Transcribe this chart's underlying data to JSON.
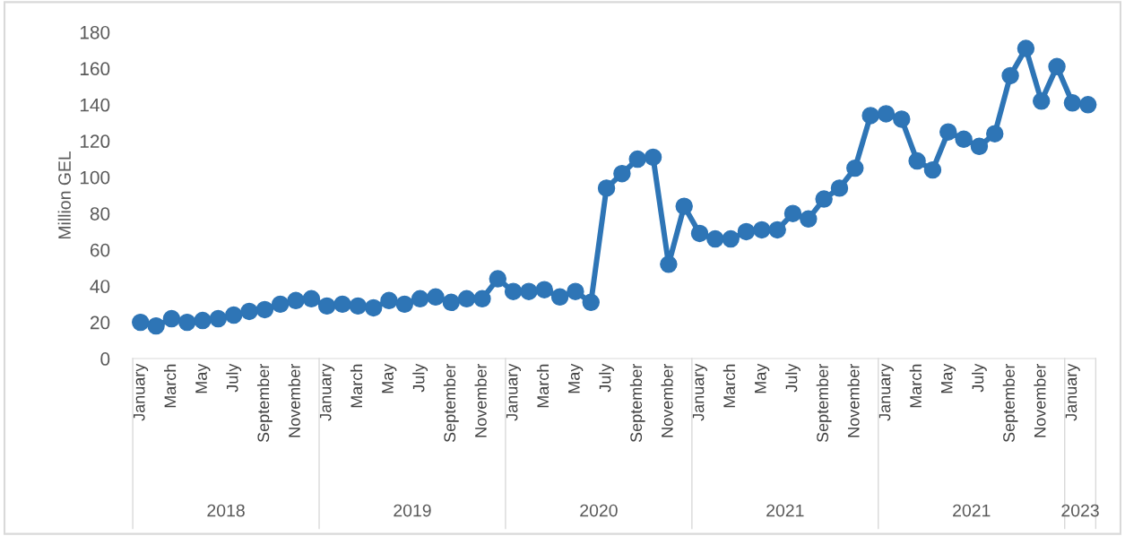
{
  "chart_data": {
    "type": "line",
    "ylabel": "Million GEL",
    "categories": [
      "January",
      null,
      "March",
      null,
      "May",
      null,
      "July",
      null,
      "September",
      null,
      "November",
      null,
      "January",
      null,
      "March",
      null,
      "May",
      null,
      "July",
      null,
      "September",
      null,
      "November",
      null,
      "January",
      null,
      "March",
      null,
      "May",
      null,
      "July",
      null,
      "September",
      null,
      "November",
      null,
      "January",
      null,
      "March",
      null,
      "May",
      null,
      "July",
      null,
      "September",
      null,
      "November",
      null,
      "January",
      null,
      "March",
      null,
      "May",
      null,
      "July",
      null,
      "September",
      null,
      "November",
      null,
      "January",
      null
    ],
    "series": [
      {
        "color": "#2e75b6",
        "values": [
          20,
          18,
          22,
          20,
          21,
          22,
          24,
          26,
          27,
          30,
          32,
          33,
          29,
          30,
          29,
          28,
          32,
          30,
          33,
          34,
          31,
          33,
          33,
          44,
          37,
          37,
          38,
          34,
          37,
          31,
          94,
          102,
          110,
          111,
          52,
          84,
          69,
          66,
          66,
          70,
          71,
          71,
          80,
          77,
          88,
          94,
          105,
          134,
          135,
          132,
          109,
          104,
          125,
          121,
          117,
          124,
          156,
          171,
          142,
          161,
          141,
          140
        ]
      }
    ],
    "ylim": [
      0,
      180
    ],
    "yticks": [
      0,
      20,
      40,
      60,
      80,
      100,
      120,
      140,
      160,
      180
    ],
    "annotations": [
      "2018",
      "2019",
      "2020",
      "2021",
      "2021",
      "2023"
    ],
    "marker": "circle",
    "line_style": "solid",
    "grid": false
  }
}
